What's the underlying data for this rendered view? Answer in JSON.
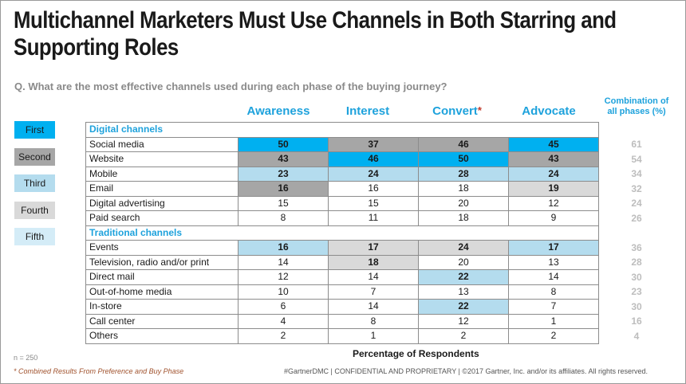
{
  "title": "Multichannel Marketers Must Use Channels in Both Starring and Supporting Roles",
  "question": "Q. What are the most effective channels used during each phase of the buying journey?",
  "phases": [
    {
      "label": "Awareness",
      "star": ""
    },
    {
      "label": "Interest",
      "star": ""
    },
    {
      "label": "Convert",
      "star": "*"
    },
    {
      "label": "Advocate",
      "star": ""
    }
  ],
  "combo_header": [
    "Combination of",
    "all phases (%)"
  ],
  "legend": [
    {
      "label": "First",
      "color": "#00b0f0"
    },
    {
      "label": "Second",
      "color": "#a6a6a6"
    },
    {
      "label": "Third",
      "color": "#b4dcee"
    },
    {
      "label": "Fourth",
      "color": "#d9d9d9"
    },
    {
      "label": "Fifth",
      "color": "#d4ecf7"
    }
  ],
  "colors": {
    "first": "#00b0f0",
    "second": "#a6a6a6",
    "third": "#b4dcee",
    "fourth": "#d9d9d9",
    "accent": "#1ea2dc"
  },
  "xlabel": "Percentage of Respondents",
  "n_note": "n = 250",
  "footnote": "* Combined Results From Preference and Buy Phase",
  "copyright": "#GartnerDMC  |  CONFIDENTIAL AND PROPRIETARY  |  ©2017 Gartner, Inc. and/or its affiliates. All rights reserved.",
  "chart_data": {
    "type": "table",
    "title": "Multichannel Marketers Must Use Channels in Both Starring and Supporting Roles",
    "xlabel": "Percentage of Respondents",
    "columns": [
      "Awareness",
      "Interest",
      "Convert*",
      "Advocate",
      "Combination of all phases (%)"
    ],
    "sections": [
      {
        "name": "Digital channels",
        "rows": [
          {
            "label": "Social media",
            "values": [
              50,
              37,
              46,
              45
            ],
            "combined": 61,
            "ranks": [
              "first",
              "second",
              "second",
              "first"
            ]
          },
          {
            "label": "Website",
            "values": [
              43,
              46,
              50,
              43
            ],
            "combined": 54,
            "ranks": [
              "second",
              "first",
              "first",
              "second"
            ]
          },
          {
            "label": "Mobile",
            "values": [
              23,
              24,
              28,
              24
            ],
            "combined": 34,
            "ranks": [
              "third",
              "third",
              "third",
              "third"
            ]
          },
          {
            "label": "Email",
            "values": [
              16,
              16,
              18,
              19
            ],
            "combined": 32,
            "ranks": [
              "second",
              "",
              "",
              "fourth"
            ]
          },
          {
            "label": "Digital advertising",
            "values": [
              15,
              15,
              20,
              12
            ],
            "combined": 24,
            "ranks": [
              "",
              "",
              "",
              ""
            ]
          },
          {
            "label": "Paid search",
            "values": [
              8,
              11,
              18,
              9
            ],
            "combined": 26,
            "ranks": [
              "",
              "",
              "",
              ""
            ]
          }
        ]
      },
      {
        "name": "Traditional channels",
        "rows": [
          {
            "label": "Events",
            "values": [
              16,
              17,
              24,
              17
            ],
            "combined": 36,
            "ranks": [
              "third",
              "fourth",
              "fourth",
              "third"
            ]
          },
          {
            "label": "Television, radio and/or print",
            "values": [
              14,
              18,
              20,
              13
            ],
            "combined": 28,
            "ranks": [
              "",
              "fourth",
              "",
              ""
            ]
          },
          {
            "label": "Direct mail",
            "values": [
              12,
              14,
              22,
              14
            ],
            "combined": 30,
            "ranks": [
              "",
              "",
              "third",
              ""
            ]
          },
          {
            "label": "Out-of-home media",
            "values": [
              10,
              7,
              13,
              8
            ],
            "combined": 23,
            "ranks": [
              "",
              "",
              "",
              ""
            ]
          },
          {
            "label": "In-store",
            "values": [
              6,
              14,
              22,
              7
            ],
            "combined": 30,
            "ranks": [
              "",
              "",
              "third",
              ""
            ]
          },
          {
            "label": "Call center",
            "values": [
              4,
              8,
              12,
              1
            ],
            "combined": 16,
            "ranks": [
              "",
              "",
              "",
              ""
            ]
          },
          {
            "label": "Others",
            "values": [
              2,
              1,
              2,
              2
            ],
            "combined": 4,
            "ranks": [
              "",
              "",
              "",
              ""
            ]
          }
        ]
      }
    ]
  }
}
